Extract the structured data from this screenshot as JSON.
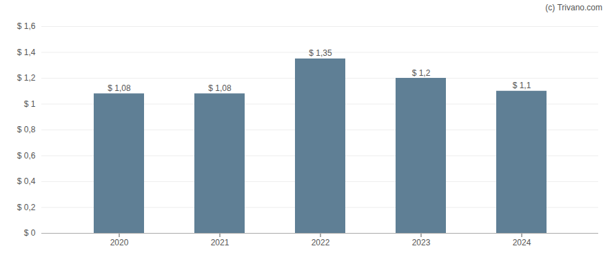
{
  "chart_data": {
    "type": "bar",
    "annotations": [
      "(c) Trivano.com"
    ],
    "categories": [
      "2020",
      "2021",
      "2022",
      "2023",
      "2024"
    ],
    "values": [
      1.08,
      1.08,
      1.35,
      1.2,
      1.1
    ],
    "value_labels": [
      "$ 1,08",
      "$ 1,08",
      "$ 1,35",
      "$ 1,2",
      "$ 1,1"
    ],
    "color": "#5f7f95",
    "ylim": [
      0,
      1.6
    ],
    "yticks": [
      {
        "value": 0,
        "label": "$ 0"
      },
      {
        "value": 0.2,
        "label": "$ 0,2"
      },
      {
        "value": 0.4,
        "label": "$ 0,4"
      },
      {
        "value": 0.6,
        "label": "$ 0,6"
      },
      {
        "value": 0.8,
        "label": "$ 0,8"
      },
      {
        "value": 1.0,
        "label": "$ 1"
      },
      {
        "value": 1.2,
        "label": "$ 1,2"
      },
      {
        "value": 1.4,
        "label": "$ 1,4"
      },
      {
        "value": 1.6,
        "label": "$ 1,6"
      }
    ],
    "grid": true,
    "data_labels": true
  }
}
